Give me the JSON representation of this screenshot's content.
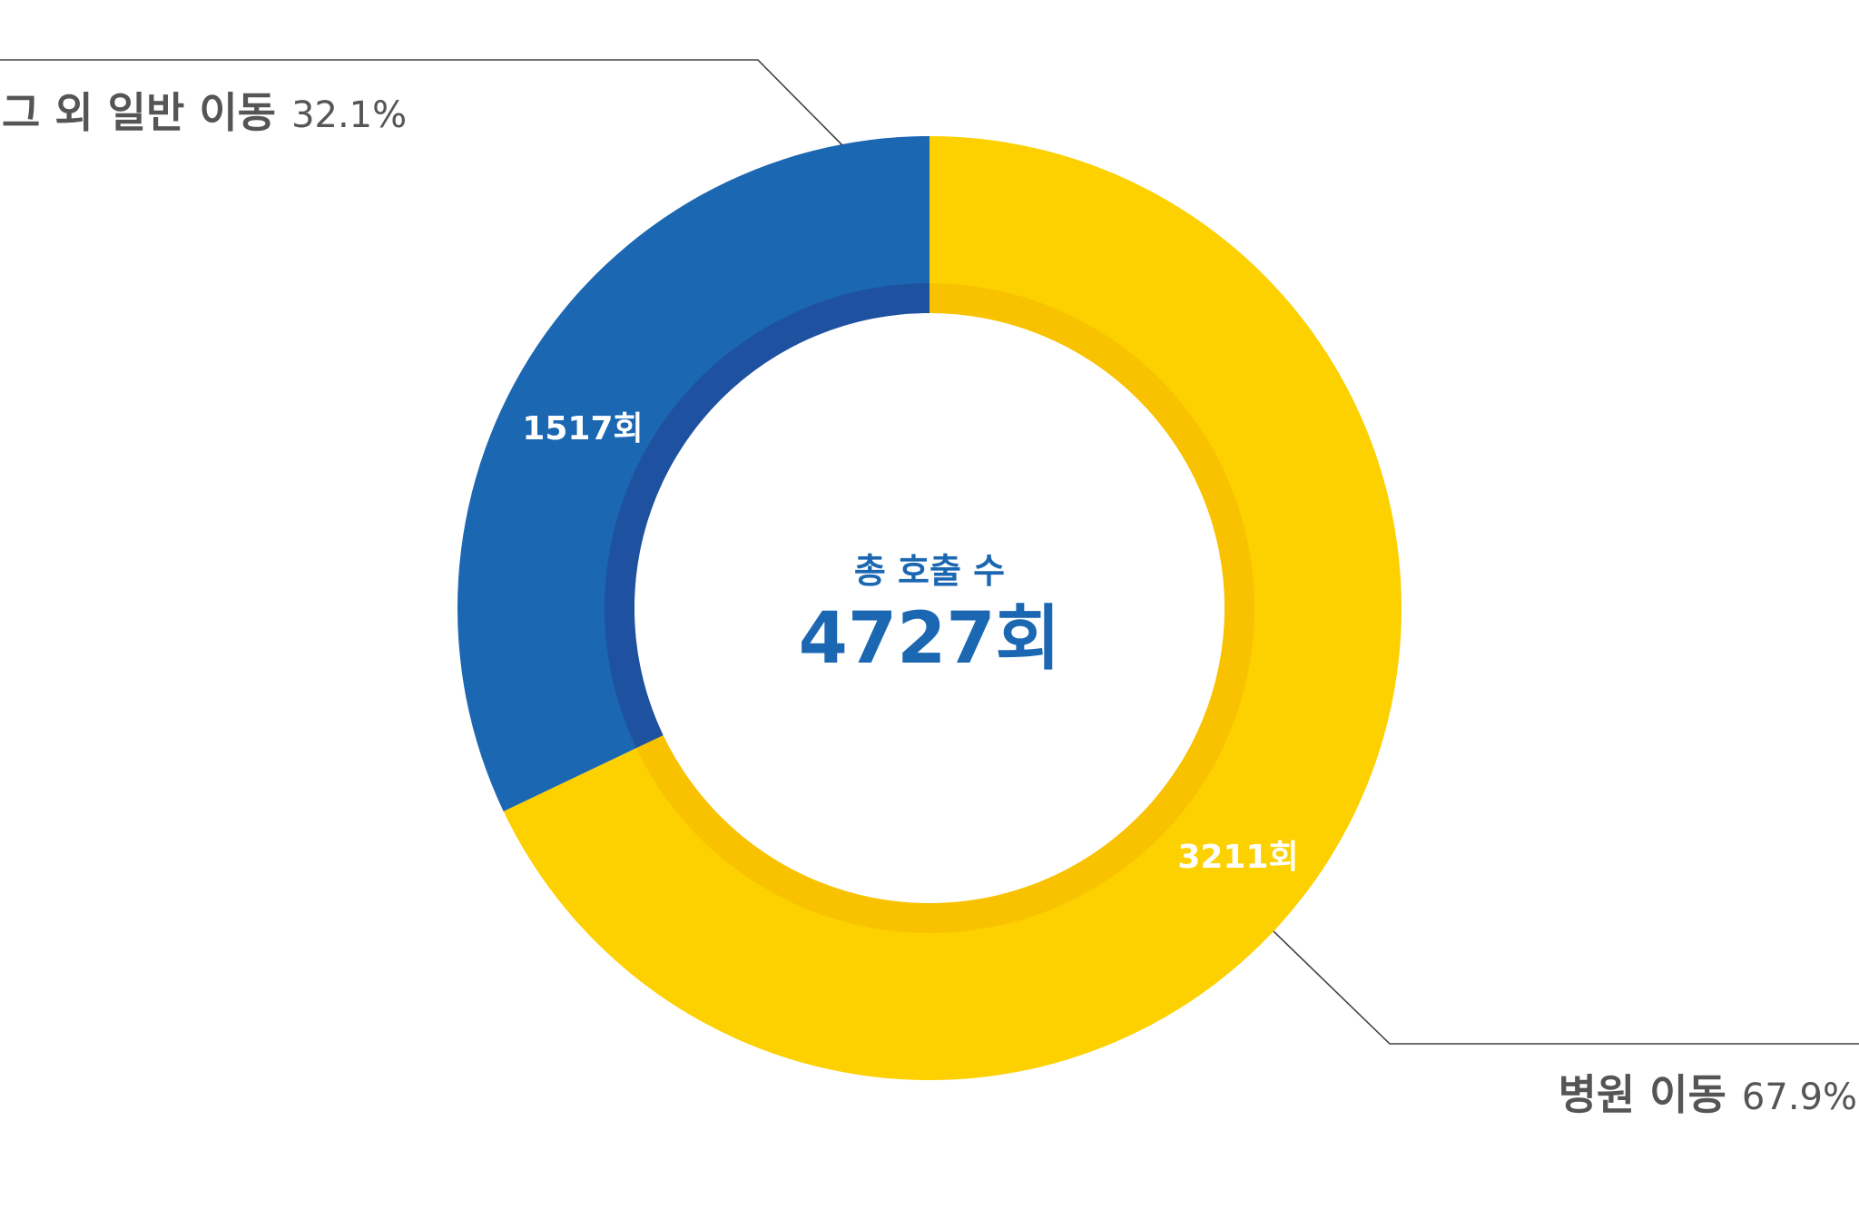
{
  "chart_data": {
    "type": "pie",
    "variant": "donut",
    "categories": [
      "병원 이동",
      "그 외 일반 이동"
    ],
    "values": [
      3211,
      1517
    ],
    "value_labels": [
      "3211회",
      "1517회"
    ],
    "percentages": [
      "67.9%",
      "32.1%"
    ],
    "colors": [
      "#fdd000",
      "#1b67b2"
    ],
    "inner_ring_colors": [
      "#f9c200",
      "#1f51a1"
    ],
    "center": {
      "title": "총 호출 수",
      "total": "4727회"
    },
    "legend_placement": "callouts"
  }
}
